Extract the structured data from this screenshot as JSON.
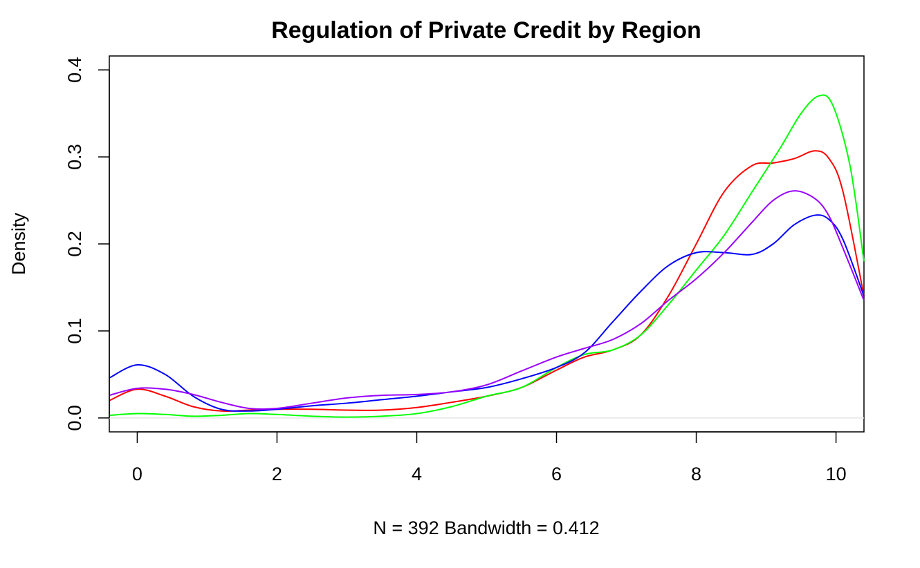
{
  "chart_data": {
    "type": "line",
    "title": "Regulation of Private Credit by Region",
    "xlabel": "N = 392   Bandwidth = 0.412",
    "ylabel": "Density",
    "xlim": [
      -0.4,
      10.4
    ],
    "ylim": [
      -0.016,
      0.416
    ],
    "x_ticks": [
      0,
      2,
      4,
      6,
      8,
      10
    ],
    "y_ticks": [
      0.0,
      0.1,
      0.2,
      0.3,
      0.4
    ],
    "x_tick_labels": [
      "0",
      "2",
      "4",
      "6",
      "8",
      "10"
    ],
    "y_tick_labels": [
      "0.0",
      "0.1",
      "0.2",
      "0.3",
      "0.4"
    ],
    "grid": false,
    "baseline": {
      "y": 0,
      "color": "#e6e6e6"
    },
    "series": [
      {
        "color": "#ff0000",
        "points": [
          [
            -0.4,
            0.02
          ],
          [
            0,
            0.033
          ],
          [
            0.4,
            0.025
          ],
          [
            0.8,
            0.013
          ],
          [
            1.2,
            0.008
          ],
          [
            1.6,
            0.009
          ],
          [
            2.0,
            0.01
          ],
          [
            2.5,
            0.01
          ],
          [
            3.0,
            0.009
          ],
          [
            3.5,
            0.009
          ],
          [
            4.0,
            0.012
          ],
          [
            4.5,
            0.018
          ],
          [
            5.0,
            0.025
          ],
          [
            5.5,
            0.035
          ],
          [
            6.0,
            0.055
          ],
          [
            6.4,
            0.07
          ],
          [
            6.8,
            0.078
          ],
          [
            7.2,
            0.095
          ],
          [
            7.6,
            0.14
          ],
          [
            8.0,
            0.2
          ],
          [
            8.4,
            0.26
          ],
          [
            8.8,
            0.29
          ],
          [
            9.1,
            0.293
          ],
          [
            9.4,
            0.298
          ],
          [
            9.7,
            0.307
          ],
          [
            9.9,
            0.298
          ],
          [
            10.1,
            0.26
          ],
          [
            10.4,
            0.14
          ]
        ]
      },
      {
        "color": "#00ff00",
        "points": [
          [
            -0.4,
            0.003
          ],
          [
            0,
            0.005
          ],
          [
            0.4,
            0.004
          ],
          [
            0.8,
            0.002
          ],
          [
            1.2,
            0.003
          ],
          [
            1.6,
            0.005
          ],
          [
            2.0,
            0.004
          ],
          [
            2.5,
            0.002
          ],
          [
            3.0,
            0.001
          ],
          [
            3.5,
            0.002
          ],
          [
            4.0,
            0.005
          ],
          [
            4.5,
            0.013
          ],
          [
            5.0,
            0.025
          ],
          [
            5.5,
            0.035
          ],
          [
            6.0,
            0.058
          ],
          [
            6.4,
            0.073
          ],
          [
            6.8,
            0.078
          ],
          [
            7.2,
            0.095
          ],
          [
            7.6,
            0.13
          ],
          [
            8.0,
            0.17
          ],
          [
            8.4,
            0.21
          ],
          [
            8.8,
            0.26
          ],
          [
            9.2,
            0.31
          ],
          [
            9.5,
            0.35
          ],
          [
            9.75,
            0.37
          ],
          [
            9.95,
            0.36
          ],
          [
            10.2,
            0.29
          ],
          [
            10.4,
            0.18
          ]
        ]
      },
      {
        "color": "#0000ff",
        "points": [
          [
            -0.4,
            0.046
          ],
          [
            0,
            0.061
          ],
          [
            0.4,
            0.05
          ],
          [
            0.8,
            0.025
          ],
          [
            1.2,
            0.01
          ],
          [
            1.6,
            0.008
          ],
          [
            2.0,
            0.01
          ],
          [
            2.5,
            0.014
          ],
          [
            3.0,
            0.017
          ],
          [
            3.5,
            0.021
          ],
          [
            4.0,
            0.025
          ],
          [
            4.5,
            0.03
          ],
          [
            5.0,
            0.035
          ],
          [
            5.5,
            0.045
          ],
          [
            6.0,
            0.058
          ],
          [
            6.4,
            0.075
          ],
          [
            6.8,
            0.11
          ],
          [
            7.2,
            0.145
          ],
          [
            7.6,
            0.175
          ],
          [
            8.0,
            0.19
          ],
          [
            8.4,
            0.19
          ],
          [
            8.8,
            0.188
          ],
          [
            9.1,
            0.2
          ],
          [
            9.4,
            0.222
          ],
          [
            9.7,
            0.233
          ],
          [
            9.9,
            0.228
          ],
          [
            10.1,
            0.205
          ],
          [
            10.4,
            0.14
          ]
        ]
      },
      {
        "color": "#9900ff",
        "points": [
          [
            -0.4,
            0.026
          ],
          [
            0,
            0.034
          ],
          [
            0.4,
            0.033
          ],
          [
            0.8,
            0.027
          ],
          [
            1.2,
            0.018
          ],
          [
            1.6,
            0.011
          ],
          [
            2.0,
            0.011
          ],
          [
            2.5,
            0.017
          ],
          [
            3.0,
            0.023
          ],
          [
            3.5,
            0.026
          ],
          [
            4.0,
            0.027
          ],
          [
            4.5,
            0.03
          ],
          [
            5.0,
            0.038
          ],
          [
            5.5,
            0.054
          ],
          [
            6.0,
            0.07
          ],
          [
            6.4,
            0.08
          ],
          [
            6.8,
            0.09
          ],
          [
            7.2,
            0.108
          ],
          [
            7.6,
            0.135
          ],
          [
            8.0,
            0.16
          ],
          [
            8.4,
            0.19
          ],
          [
            8.8,
            0.225
          ],
          [
            9.1,
            0.25
          ],
          [
            9.4,
            0.261
          ],
          [
            9.7,
            0.252
          ],
          [
            9.9,
            0.232
          ],
          [
            10.1,
            0.195
          ],
          [
            10.4,
            0.135
          ]
        ]
      }
    ]
  }
}
